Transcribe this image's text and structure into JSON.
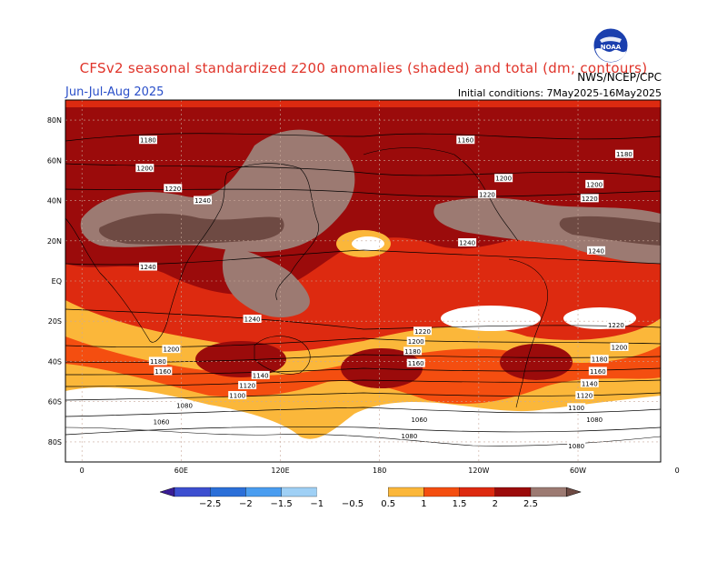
{
  "title": "CFSv2 seasonal standardized z200 anomalies (shaded) and total (dm; contours)",
  "season": "Jun-Jul-Aug 2025",
  "initial_conditions": "Initial conditions: 7May2025-16May2025",
  "agency": "NWS/NCEP/CPC",
  "logo_text": "NOAA",
  "colors": {
    "lt_neg3": "#3a1d96",
    "neg25_neg2": "#3d4fd0",
    "neg2_neg15": "#2b6fd8",
    "neg15_neg1": "#4a9df0",
    "neg1_neg05": "#9fd0f5",
    "neutral": "#ffffff",
    "p05_1": "#fbb73a",
    "p1_15": "#f44e10",
    "p15_2": "#dd2a10",
    "p2_25": "#9b0b0b",
    "p25_3": "#9c7a72",
    "gt3": "#6e4a43"
  },
  "map": {
    "lat_labels": [
      "80N",
      "60N",
      "40N",
      "20N",
      "EQ",
      "20S",
      "40S",
      "60S",
      "80S"
    ],
    "lon_labels": [
      "0",
      "60E",
      "120E",
      "180",
      "120W",
      "60W",
      "0"
    ],
    "contour_labels": [
      {
        "text": "1180",
        "lon": 40,
        "lat": 70
      },
      {
        "text": "1200",
        "lon": 38,
        "lat": 56
      },
      {
        "text": "1220",
        "lon": 55,
        "lat": 46
      },
      {
        "text": "1240",
        "lon": 73,
        "lat": 40
      },
      {
        "text": "1240",
        "lon": 40,
        "lat": 7
      },
      {
        "text": "1240",
        "lon": 103,
        "lat": -19
      },
      {
        "text": "1200",
        "lon": 54,
        "lat": -34
      },
      {
        "text": "1180",
        "lon": 46,
        "lat": -40
      },
      {
        "text": "1160",
        "lon": 49,
        "lat": -45
      },
      {
        "text": "1140",
        "lon": 108,
        "lat": -47
      },
      {
        "text": "1120",
        "lon": 100,
        "lat": -52
      },
      {
        "text": "1100",
        "lon": 94,
        "lat": -57
      },
      {
        "text": "1080",
        "lon": 62,
        "lat": -62
      },
      {
        "text": "1060",
        "lon": 48,
        "lat": -70
      },
      {
        "text": "1160",
        "lon": -128,
        "lat": 70
      },
      {
        "text": "1200",
        "lon": -105,
        "lat": 51
      },
      {
        "text": "1220",
        "lon": -115,
        "lat": 43
      },
      {
        "text": "1240",
        "lon": -127,
        "lat": 19
      },
      {
        "text": "1220",
        "lon": -154,
        "lat": -25
      },
      {
        "text": "1200",
        "lon": -158,
        "lat": -30
      },
      {
        "text": "1180",
        "lon": -160,
        "lat": -35
      },
      {
        "text": "1160",
        "lon": -158,
        "lat": -41
      },
      {
        "text": "1060",
        "lon": -156,
        "lat": -69
      },
      {
        "text": "1080",
        "lon": -162,
        "lat": -77
      },
      {
        "text": "1180",
        "lon": -32,
        "lat": 63
      },
      {
        "text": "1200",
        "lon": -50,
        "lat": 48
      },
      {
        "text": "1220",
        "lon": -53,
        "lat": 41
      },
      {
        "text": "1240",
        "lon": -49,
        "lat": 15
      },
      {
        "text": "1220",
        "lon": -37,
        "lat": -22
      },
      {
        "text": "1200",
        "lon": -35,
        "lat": -33
      },
      {
        "text": "1180",
        "lon": -47,
        "lat": -39
      },
      {
        "text": "1160",
        "lon": -48,
        "lat": -45
      },
      {
        "text": "1140",
        "lon": -53,
        "lat": -51
      },
      {
        "text": "1120",
        "lon": -56,
        "lat": -57
      },
      {
        "text": "1100",
        "lon": -61,
        "lat": -63
      },
      {
        "text": "1080",
        "lon": -50,
        "lat": -69
      },
      {
        "text": "1080",
        "lon": -61,
        "lat": -82
      }
    ]
  },
  "colorbar": {
    "tick_labels": [
      "-2.5",
      "-2",
      "-1.5",
      "-1",
      "-0.5",
      "0.5",
      "1",
      "1.5",
      "2",
      "2.5"
    ]
  }
}
